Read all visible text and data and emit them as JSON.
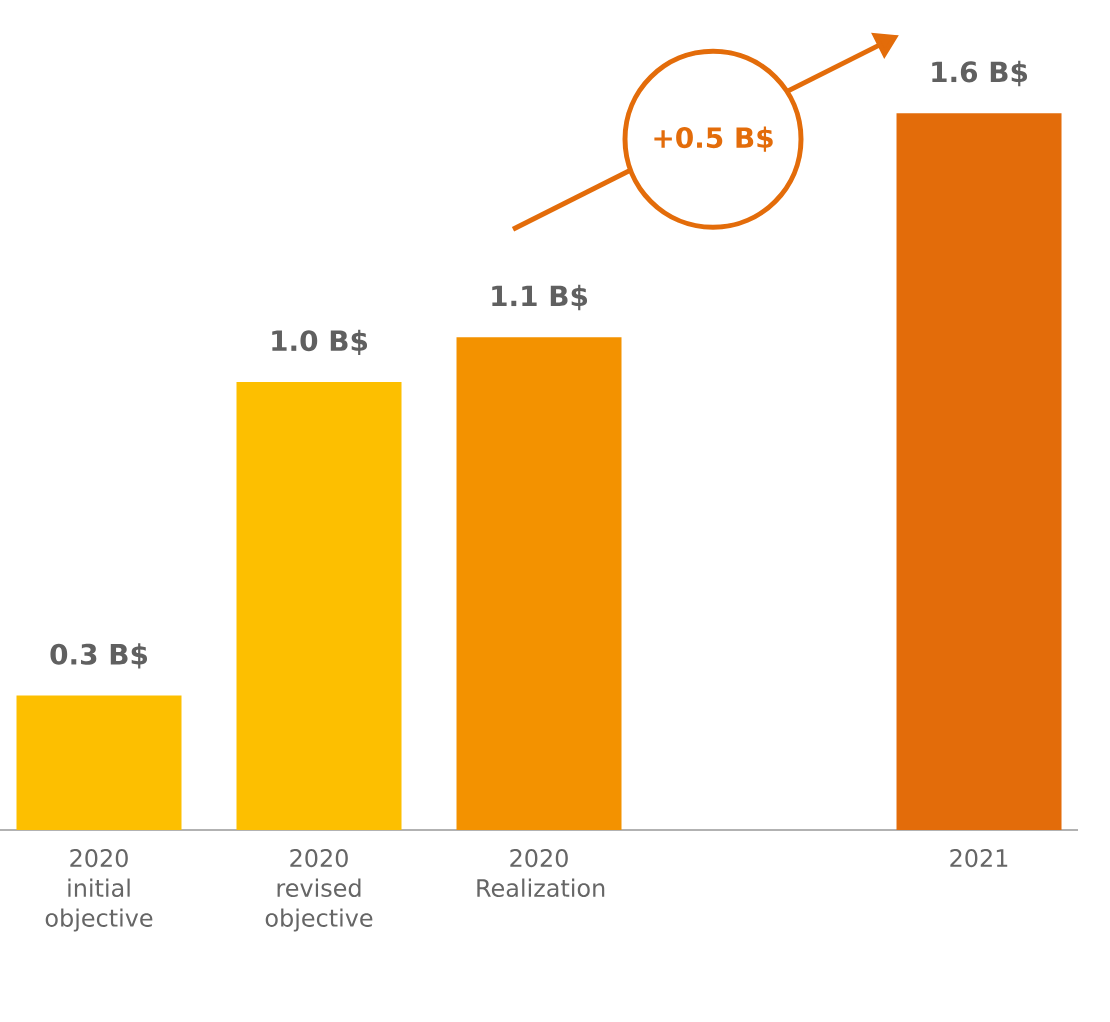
{
  "chart_data": {
    "type": "bar",
    "categories": [
      "2020 initial objective",
      "2020 revised objective",
      "2020 Realization",
      null,
      "2021"
    ],
    "values": [
      0.3,
      1.0,
      1.1,
      null,
      1.6
    ],
    "colors": [
      "#fdbf00",
      "#fdbf00",
      "#f39200",
      "#f39200",
      "#e36c0a"
    ],
    "value_labels": [
      "0.3 B$",
      "1.0 B$",
      "1.1 B$",
      null,
      "1.6 B$"
    ],
    "annotations": [
      "+0.5 B$"
    ],
    "grid": false,
    "legend": false
  }
}
